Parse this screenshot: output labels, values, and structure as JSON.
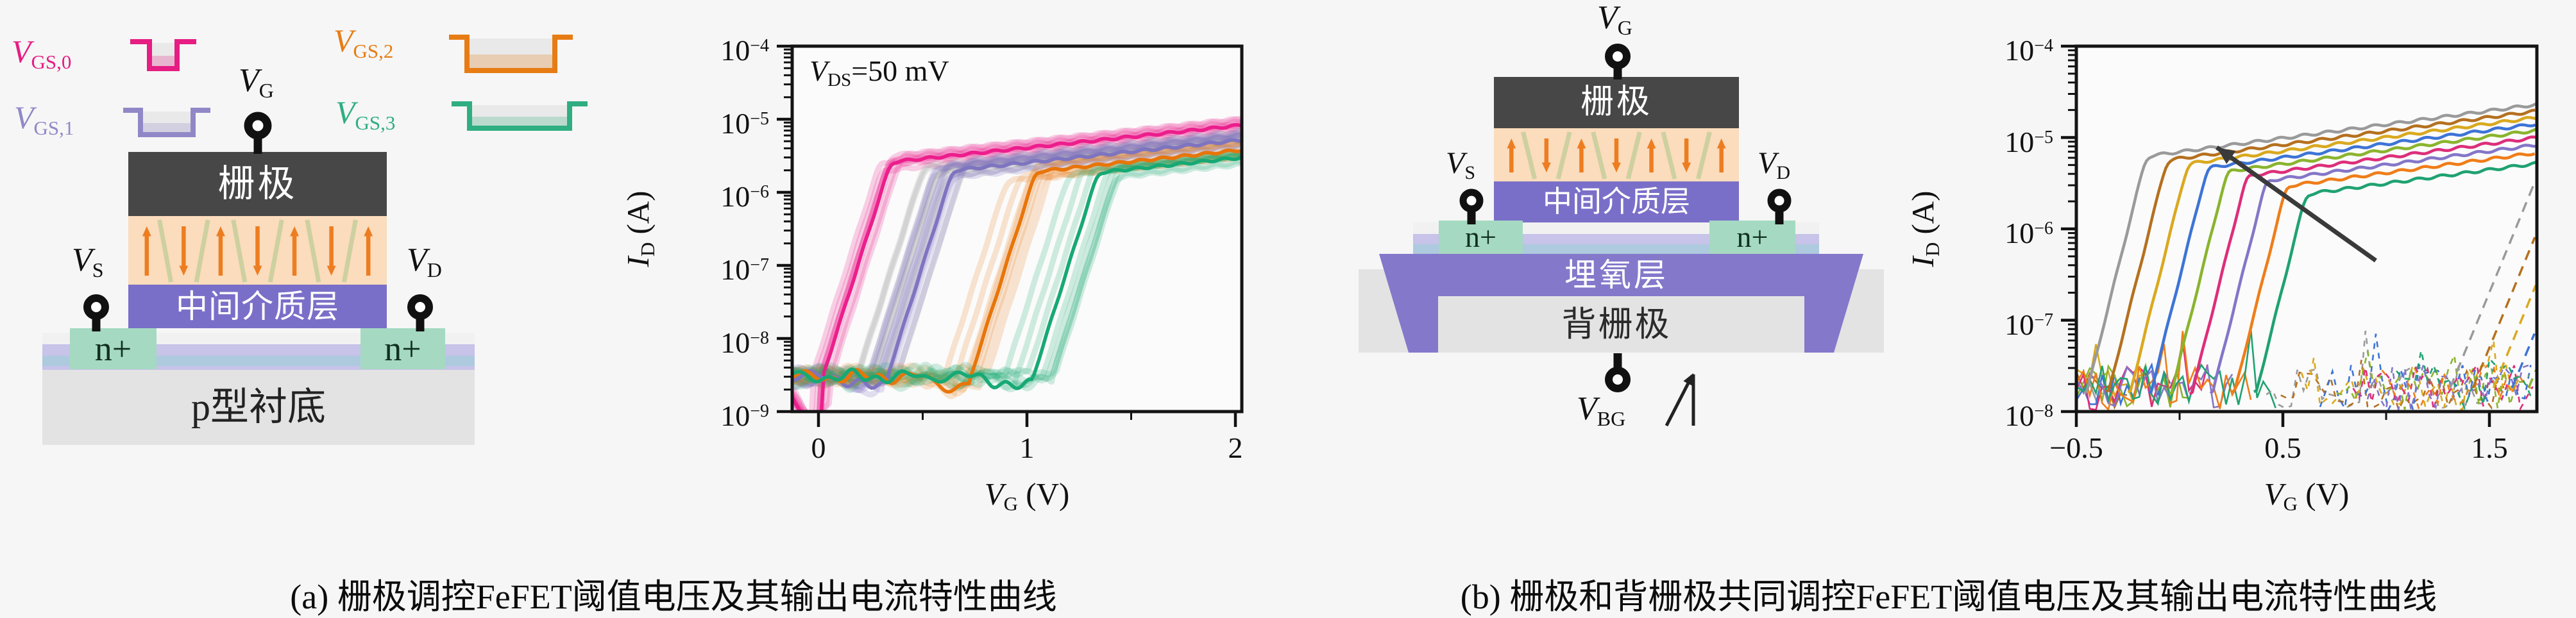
{
  "page": {
    "background": "#f6f6f6"
  },
  "panel_a": {
    "caption": "(a) 栅极调控FeFET阈值电压及其输出电流特性曲线",
    "legend": {
      "items": [
        {
          "sym": "V",
          "sub": "GS,0",
          "color": "#e61d83",
          "pulse": "narrow-deep"
        },
        {
          "sym": "V",
          "sub": "GS,1",
          "color": "#9088c6",
          "pulse": "medium-shallow"
        },
        {
          "sym": "V",
          "sub": "GS,2",
          "color": "#e77c14",
          "pulse": "wide-deep"
        },
        {
          "sym": "V",
          "sub": "GS,3",
          "color": "#2fae81",
          "pulse": "wide-shallow"
        }
      ]
    },
    "device": {
      "terminals": {
        "gate": {
          "sym": "V",
          "sub": "G"
        },
        "source": {
          "sym": "V",
          "sub": "S"
        },
        "drain": {
          "sym": "V",
          "sub": "D"
        }
      },
      "layers": {
        "gate": "栅极",
        "dielectric": "中间介质层",
        "source_region": "n+",
        "drain_region": "n+",
        "substrate": "p型衬底"
      },
      "colors": {
        "gate": "#474747",
        "ferroelectric": "#fbdcbc",
        "polar_arrow": "#ed7d21",
        "domain_wall": "#c9cf9e",
        "dielectric": "#7a6fc8",
        "nplus": "#a5d9c2",
        "stripe_white": "#f1f1f1",
        "stripe_lavender": "#c7c3e9",
        "stripe_blue": "#aecade",
        "substrate": "#e3e3e3",
        "terminal": "#111111"
      }
    }
  },
  "panel_b": {
    "caption": "(b) 栅极和背栅极共同调控FeFET阈值电压及其输出电流特性曲线",
    "device": {
      "terminals": {
        "gate": {
          "sym": "V",
          "sub": "G"
        },
        "source": {
          "sym": "V",
          "sub": "S"
        },
        "drain": {
          "sym": "V",
          "sub": "D"
        },
        "backgate": {
          "sym": "V",
          "sub": "BG"
        }
      },
      "layers": {
        "gate": "栅极",
        "dielectric": "中间介质层",
        "source_region": "n+",
        "drain_region": "n+",
        "box": "埋氧层",
        "backgate": "背栅极"
      },
      "colors": {
        "gate": "#474747",
        "ferroelectric": "#fbdcbc",
        "polar_arrow": "#ed7d21",
        "domain_wall": "#c9cf9e",
        "dielectric": "#7a6fc8",
        "nplus": "#a5d9c2",
        "stripe_white": "#f1f1f1",
        "stripe_lavender": "#c7c3e9",
        "stripe_blue": "#aecade",
        "box": "#8478cb",
        "backgate_slab": "#e3e3e3",
        "terminal": "#111111"
      }
    }
  },
  "chart_data": [
    {
      "type": "line",
      "panel": "a",
      "scale": "log-y",
      "annotation": {
        "sym": "V",
        "sub": "DS",
        "rest": "=50 mV"
      },
      "xlabel": {
        "sym": "V",
        "sub": "G",
        "rest": " (V)"
      },
      "ylabel": {
        "sym": "I",
        "sub": "D",
        "rest": " (A)"
      },
      "xlim": [
        -0.13,
        2.03
      ],
      "ylim": [
        1e-09,
        0.0001
      ],
      "x_ticks": [
        {
          "label": "0",
          "v": 0
        },
        {
          "label": "1",
          "v": 1
        },
        {
          "label": "2",
          "v": 2
        }
      ],
      "x_minor_ticks": [
        0.5,
        1.5
      ],
      "y_ticks": [
        {
          "base": "10",
          "exp": "−4",
          "e": -4
        },
        {
          "base": "10",
          "exp": "−5",
          "e": -5
        },
        {
          "base": "10",
          "exp": "−6",
          "e": -6
        },
        {
          "base": "10",
          "exp": "−7",
          "e": -7
        },
        {
          "base": "10",
          "exp": "−8",
          "e": -8
        },
        {
          "base": "10",
          "exp": "−9",
          "e": -9
        }
      ],
      "off_floor_A": 3e-09,
      "series": [
        {
          "name": "VGS,0",
          "color": "#ec1e8c",
          "band_color": "rgba(236,30,140,0.20)",
          "vth": 0.02,
          "isat_A": 8.3e-06,
          "band_jitter": 0.06,
          "dip": {
            "v": -0.02,
            "to_A": 1e-09
          }
        },
        {
          "name": "VGS,1",
          "color": "#7e74c0",
          "band_color": "rgba(126,116,194,0.22)",
          "extra_band_color": "rgba(160,160,160,0.25)",
          "vth": 0.33,
          "isat_A": 5.2e-06,
          "band_jitter": 0.1
        },
        {
          "name": "VGS,2",
          "color": "#e8750a",
          "band_color": "rgba(232,117,10,0.18)",
          "vth": 0.73,
          "isat_A": 3.8e-06,
          "band_jitter": 0.14
        },
        {
          "name": "VGS,3",
          "color": "#17a974",
          "band_color": "rgba(23,169,116,0.20)",
          "vth": 1.03,
          "isat_A": 3e-06,
          "band_jitter": 0.14
        }
      ]
    },
    {
      "type": "line",
      "panel": "b",
      "scale": "log-y",
      "xlabel": {
        "sym": "V",
        "sub": "G",
        "rest": " (V)"
      },
      "ylabel": {
        "sym": "I",
        "sub": "D",
        "rest": " (A)"
      },
      "xlim": [
        -0.53,
        1.73
      ],
      "ylim": [
        1e-08,
        0.0001
      ],
      "x_ticks": [
        {
          "label": "−0.5",
          "v": -0.5
        },
        {
          "label": "0.5",
          "v": 0.5
        },
        {
          "label": "1.5",
          "v": 1.5
        }
      ],
      "x_minor_ticks": [
        0,
        1
      ],
      "y_ticks": [
        {
          "base": "10",
          "exp": "−4",
          "e": -4
        },
        {
          "base": "10",
          "exp": "−5",
          "e": -5
        },
        {
          "base": "10",
          "exp": "−6",
          "e": -6
        },
        {
          "base": "10",
          "exp": "−7",
          "e": -7
        },
        {
          "base": "10",
          "exp": "−8",
          "e": -8
        }
      ],
      "noise_floor_A": 1.6e-08,
      "solid_series": [
        {
          "color": "#9a9a9a",
          "vth": -0.45,
          "isat_A": 2.3e-05
        },
        {
          "color": "#b5701f",
          "vth": -0.345,
          "isat_A": 1.95e-05
        },
        {
          "color": "#d9a91f",
          "vth": -0.24,
          "isat_A": 1.66e-05
        },
        {
          "color": "#3d74d6",
          "vth": -0.14,
          "isat_A": 1.41e-05
        },
        {
          "color": "#8ab42e",
          "vth": -0.04,
          "isat_A": 1.2e-05
        },
        {
          "color": "#dd2e7a",
          "vth": 0.06,
          "isat_A": 1e-05
        },
        {
          "color": "#8476c8",
          "vth": 0.16,
          "isat_A": 8.3e-06
        },
        {
          "color": "#ef7d19",
          "vth": 0.265,
          "isat_A": 6.8e-06
        },
        {
          "color": "#1fa271",
          "vth": 0.37,
          "isat_A": 5.2e-06
        }
      ],
      "dashed_series": [
        {
          "color": "#9a9a9a",
          "vth": 1.3
        },
        {
          "color": "#b5701f",
          "vth": 1.41
        },
        {
          "color": "#d9a91f",
          "vth": 1.51
        },
        {
          "color": "#3d74d6",
          "vth": 1.6
        },
        {
          "color": "#8ab42e",
          "vth": 1.68
        },
        {
          "color": "#dd2e7a",
          "vth": 1.76
        },
        {
          "color": "#8476c8",
          "vth": 1.83
        },
        {
          "color": "#ef7d19",
          "vth": 1.9
        },
        {
          "color": "#1fa271",
          "vth": 1.97
        }
      ],
      "arrow": {
        "from": {
          "v": 0.95,
          "i_A": 4.5e-07
        },
        "to": {
          "v": 0.18,
          "i_A": 7.8e-06
        },
        "color": "#3a3a3a"
      }
    }
  ]
}
